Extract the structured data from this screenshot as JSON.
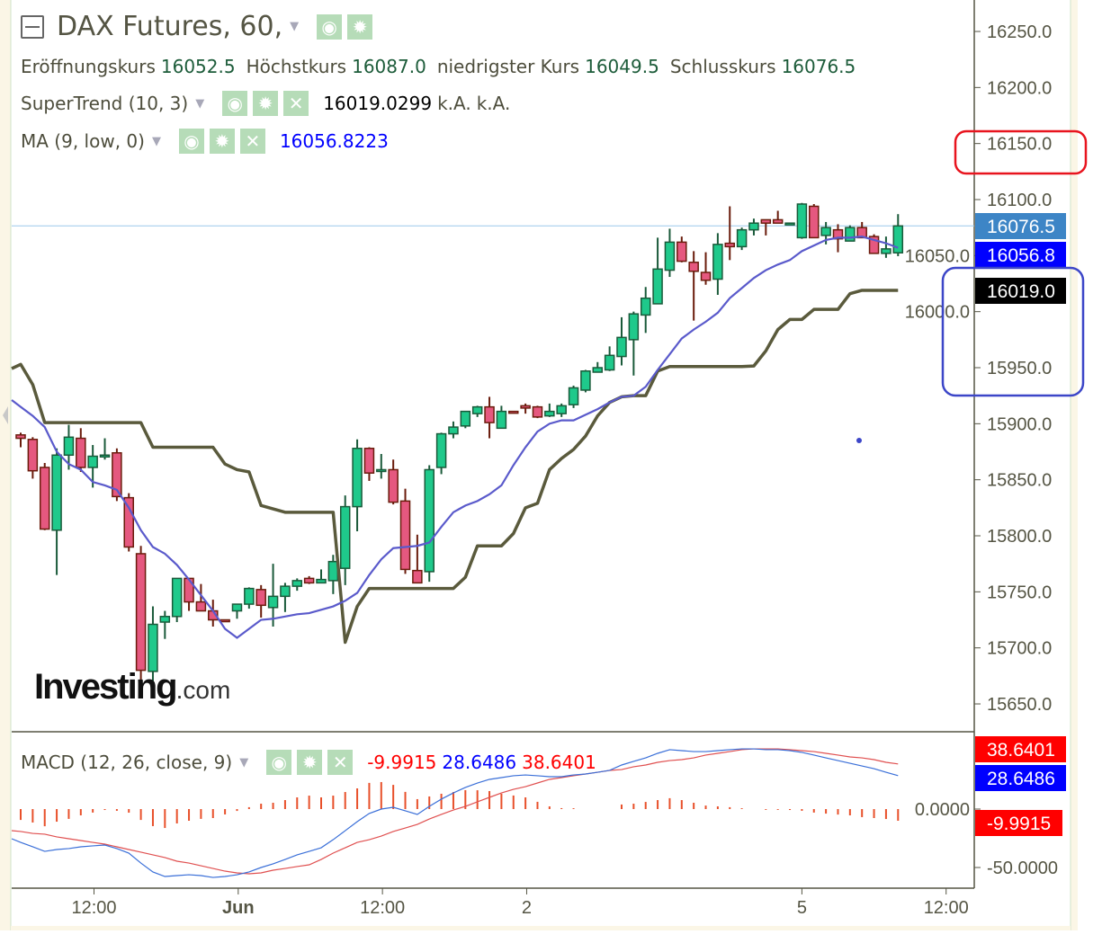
{
  "header": {
    "title": "DAX Futures, 60,",
    "ohlc": [
      {
        "label": "Eröffnungskurs",
        "value": "16052.5"
      },
      {
        "label": "Höchstkurs",
        "value": "16087.0"
      },
      {
        "label": "niedrigster Kurs",
        "value": "16049.5"
      },
      {
        "label": "Schlusskurs",
        "value": "16076.5"
      }
    ],
    "supertrend": {
      "label": "SuperTrend (10, 3)",
      "value": "16019.0299",
      "extra1": "k.A.",
      "extra2": "k.A."
    },
    "ma": {
      "label": "MA (9, low, 0)",
      "value": "16056.8223"
    },
    "macd": {
      "label": "MACD (12, 26, close, 9)",
      "hist": "-9.9915",
      "macd": "28.6486",
      "signal": "38.6401"
    }
  },
  "icons": {
    "visibility": "eye-icon",
    "settings": "gear-icon",
    "remove": "close-icon",
    "collapse": "minus-square-icon",
    "menu": "caret-down-icon"
  },
  "logo": {
    "main": "Investing",
    "suffix": ".com"
  },
  "colors": {
    "up_fill": "#1fc98b",
    "up_border": "#1a5a3a",
    "down_fill": "#e5587f",
    "down_border": "#6a1c0c",
    "supertrend": "#5a5a3c",
    "ma": "#5a5acb",
    "macd": "#3a6fd8",
    "signal": "#e05050",
    "hist": "#e8502a",
    "last_price_bg": "#3d85c6",
    "ma_label_bg": "#0000ff",
    "st_label_bg": "#000000",
    "red_label_bg": "#ff0000",
    "annotation_red": "#e8141e",
    "annotation_blue": "#3c46c8"
  },
  "chart_data": [
    {
      "type": "candlestick",
      "title": "DAX Futures, 60,",
      "ylim": [
        15630,
        16270
      ],
      "y_ticks": [
        "16250.0",
        "16200.0",
        "16150.0",
        "16100.0",
        "16050.0",
        "16000.0",
        "15950.0",
        "15900.0",
        "15850.0",
        "15800.0",
        "15750.0",
        "15700.0",
        "15650.0"
      ],
      "x_ticks": [
        "12:00",
        "Jun",
        "12:00",
        "2",
        "5",
        "12:00"
      ],
      "grid": false,
      "last_price_label": "16076.5",
      "ma_label": "16056.8",
      "supertrend_label": "16019.0",
      "ohlc": [
        [
          15890,
          15892,
          15879,
          15887
        ],
        [
          15886,
          15888,
          15851,
          15858
        ],
        [
          15861,
          15865,
          15805,
          15806
        ],
        [
          15805,
          15878,
          15765,
          15872
        ],
        [
          15872,
          15899,
          15859,
          15888
        ],
        [
          15887,
          15896,
          15857,
          15861
        ],
        [
          15861,
          15881,
          15843,
          15871
        ],
        [
          15871,
          15887,
          15868,
          15872
        ],
        [
          15874,
          15878,
          15831,
          15835
        ],
        [
          15834,
          15838,
          15786,
          15790
        ],
        [
          15784,
          15791,
          15668,
          15680
        ],
        [
          15679,
          15737,
          15668,
          15721
        ],
        [
          15723,
          15733,
          15708,
          15728
        ],
        [
          15728,
          15762,
          15723,
          15762
        ],
        [
          15762,
          15762,
          15733,
          15741
        ],
        [
          15741,
          15757,
          15733,
          15733
        ],
        [
          15733,
          15743,
          15719,
          15725
        ],
        [
          15725,
          15725,
          15724,
          15724
        ],
        [
          15733,
          15739,
          15726,
          15739
        ],
        [
          15739,
          15754,
          15735,
          15753
        ],
        [
          15752,
          15756,
          15727,
          15738
        ],
        [
          15736,
          15775,
          15719,
          15746
        ],
        [
          15746,
          15758,
          15732,
          15755
        ],
        [
          15755,
          15762,
          15751,
          15760
        ],
        [
          15762,
          15764,
          15757,
          15758
        ],
        [
          15758,
          15770,
          15758,
          15761
        ],
        [
          15760,
          15783,
          15748,
          15777
        ],
        [
          15771,
          15836,
          15756,
          15826
        ],
        [
          15826,
          15886,
          15804,
          15878
        ],
        [
          15878,
          15879,
          15849,
          15856
        ],
        [
          15858,
          15873,
          15851,
          15859
        ],
        [
          15859,
          15868,
          15828,
          15830
        ],
        [
          15831,
          15842,
          15766,
          15770
        ],
        [
          15769,
          15801,
          15758,
          15758
        ],
        [
          15768,
          15863,
          15759,
          15859
        ],
        [
          15861,
          15892,
          15855,
          15891
        ],
        [
          15891,
          15902,
          15887,
          15897
        ],
        [
          15898,
          15911,
          15896,
          15911
        ],
        [
          15909,
          15916,
          15906,
          15915
        ],
        [
          15915,
          15924,
          15887,
          15901
        ],
        [
          15896,
          15916,
          15896,
          15911
        ],
        [
          15911,
          15911,
          15910,
          15910
        ],
        [
          15916,
          15918,
          15909,
          15914
        ],
        [
          15915,
          15916,
          15905,
          15906
        ],
        [
          15907,
          15918,
          15906,
          15911
        ],
        [
          15909,
          15918,
          15906,
          15916
        ],
        [
          15917,
          15934,
          15914,
          15932
        ],
        [
          15930,
          15948,
          15928,
          15947
        ],
        [
          15946,
          15955,
          15946,
          15950
        ],
        [
          15948,
          15969,
          15947,
          15961
        ],
        [
          15960,
          15995,
          15952,
          15977
        ],
        [
          15975,
          16000,
          15943,
          15998
        ],
        [
          15997,
          16022,
          15981,
          16012
        ],
        [
          16007,
          16066,
          16007,
          16038
        ],
        [
          16037,
          16074,
          16031,
          16062
        ],
        [
          16062,
          16067,
          16044,
          16045
        ],
        [
          16044,
          16054,
          15992,
          16036
        ],
        [
          16035,
          16053,
          16024,
          16028
        ],
        [
          16029,
          16070,
          16015,
          16060
        ],
        [
          16061,
          16094,
          16046,
          16058
        ],
        [
          16058,
          16075,
          16055,
          16073
        ],
        [
          16073,
          16083,
          16068,
          16079
        ],
        [
          16082,
          16082,
          16068,
          16079
        ],
        [
          16082,
          16090,
          16079,
          16079
        ],
        [
          16079,
          16079,
          16079,
          16079
        ],
        [
          16066,
          16097,
          16065,
          16096
        ],
        [
          16094,
          16096,
          16066,
          16066
        ],
        [
          16068,
          16080,
          16060,
          16075
        ],
        [
          16073,
          16078,
          16053,
          16065
        ],
        [
          16063,
          16077,
          16063,
          16075
        ],
        [
          16075,
          16080,
          16066,
          16066
        ],
        [
          16067,
          16069,
          16052,
          16052
        ],
        [
          16052,
          16067,
          16048,
          16056
        ],
        [
          16052.5,
          16087,
          16049.5,
          16076.5
        ]
      ],
      "series": [
        {
          "name": "SuperTrend (10, 3)",
          "values": [
            15953,
            15935,
            15901,
            15901,
            15901,
            15901,
            15901,
            15901,
            15901,
            15901,
            15901,
            15879,
            15879,
            15879,
            15879,
            15879,
            15879,
            15864,
            15859,
            15857,
            15827,
            15824,
            15821,
            15821,
            15821,
            15821,
            15821,
            15705,
            15737,
            15753,
            15753,
            15753,
            15753,
            15753,
            15753,
            15753,
            15753,
            15763,
            15791,
            15791,
            15791,
            15802,
            15825,
            15829,
            15859,
            15869,
            15877,
            15889,
            15907,
            15919,
            15924,
            15925,
            15925,
            15947,
            15951,
            15951,
            15951,
            15951,
            15951,
            15951,
            15951,
            15951.5,
            15965,
            15984,
            15993,
            15993,
            16002,
            16002,
            16002,
            16016,
            16019,
            16019,
            16019,
            16019
          ]
        },
        {
          "name": "MA (9, low, 0)",
          "values": [
            15915,
            15907,
            15897,
            15875,
            15864,
            15859,
            15848,
            15845,
            15841,
            15825,
            15805,
            15790,
            15784,
            15774,
            15761,
            15747,
            15733,
            15717,
            15709,
            15717,
            15725,
            15726,
            15728,
            15730,
            15731,
            15734,
            15737,
            15742,
            15749,
            15765,
            15779,
            15789,
            15790,
            15791,
            15794,
            15808,
            15821,
            15827,
            15831,
            15837,
            15845,
            15863,
            15879,
            15893,
            15900,
            15903,
            15903,
            15908,
            15913,
            15919,
            15924,
            15925,
            15933,
            15948,
            15962,
            15976,
            15984,
            15991,
            15999,
            16012,
            16021,
            16030,
            16037,
            16042,
            16046,
            16054,
            16059,
            16064,
            16066,
            16066,
            16067,
            16064,
            16061,
            16057
          ]
        }
      ]
    },
    {
      "type": "line",
      "title": "MACD (12, 26, close, 9)",
      "ylim": [
        -62,
        65
      ],
      "y_ticks": [
        "0.0000",
        "-50.0000"
      ],
      "value_labels": {
        "signal": "38.6401",
        "macd": "28.6486",
        "hist": "-9.9915"
      },
      "series": [
        {
          "name": "MACD",
          "values": [
            -28.5,
            -32.3,
            -36.2,
            -34.6,
            -33.8,
            -32.3,
            -31.5,
            -30.8,
            -33.8,
            -37.7,
            -46.2,
            -53.8,
            -57.7,
            -56.9,
            -56.2,
            -56.9,
            -58.5,
            -57.7,
            -56.2,
            -53.8,
            -50,
            -46.9,
            -43.1,
            -39.2,
            -36.2,
            -33.1,
            -26.2,
            -18.5,
            -10.8,
            -3.8,
            0,
            1.5,
            -1.5,
            -4.6,
            2.3,
            8.5,
            13.8,
            18.5,
            22.3,
            25.4,
            26.9,
            28.5,
            29.2,
            28.5,
            27.7,
            27.7,
            29.2,
            30,
            31.5,
            33.1,
            37.7,
            40.8,
            43.8,
            47.7,
            50.8,
            50,
            49.2,
            49.2,
            50,
            50.8,
            51.5,
            51.5,
            50.8,
            50.8,
            50,
            48.5,
            46.2,
            43.8,
            41.5,
            39.2,
            36.9,
            34.6,
            31.5,
            28.6
          ]
        },
        {
          "name": "Signal",
          "values": [
            -19.2,
            -20.8,
            -21.5,
            -23.8,
            -25.4,
            -26.9,
            -28.5,
            -30,
            -32.3,
            -34.6,
            -36.9,
            -39.2,
            -41.5,
            -44.6,
            -46.2,
            -48.5,
            -50.8,
            -53.1,
            -54.6,
            -55.4,
            -54.6,
            -52.3,
            -50.8,
            -49.2,
            -47.7,
            -43.1,
            -37.7,
            -33.1,
            -28.5,
            -26.2,
            -23.1,
            -19.2,
            -16.2,
            -13.1,
            -8.5,
            -4.6,
            -0.8,
            2.3,
            6.2,
            10,
            13.8,
            16.9,
            19.2,
            22.3,
            25.4,
            26.9,
            28.5,
            30,
            31.5,
            33.1,
            33.8,
            36.2,
            37.7,
            40,
            41.5,
            42.3,
            43.8,
            46.2,
            47.7,
            49.2,
            50.8,
            51.5,
            51.5,
            51.5,
            50.8,
            50,
            49.2,
            47.7,
            46.2,
            44.6,
            43.8,
            42.3,
            40,
            38.6
          ]
        }
      ]
    }
  ]
}
